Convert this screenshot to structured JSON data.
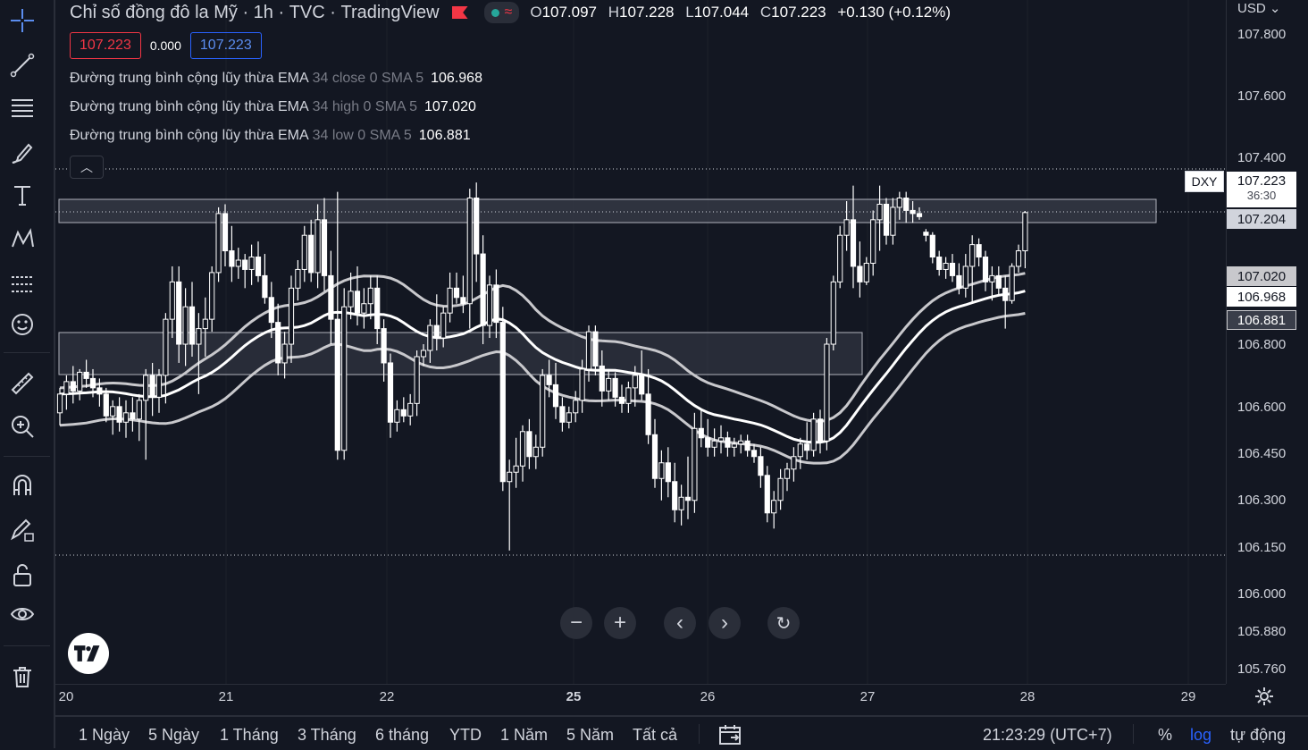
{
  "header": {
    "symbol_name": "Chỉ số đồng đô la Mỹ",
    "interval": "1h",
    "exchange": "TVC",
    "source": "TradingView",
    "ohlc": [
      {
        "k": "O",
        "v": "107.097"
      },
      {
        "k": "H",
        "v": "107.228"
      },
      {
        "k": "L",
        "v": "107.044"
      },
      {
        "k": "C",
        "v": "107.223"
      }
    ],
    "change": "+0.130 (+0.12%)",
    "sell_price": "107.223",
    "spread": "0.000",
    "buy_price": "107.223"
  },
  "indicators": [
    {
      "name": "Đường trung bình cộng lũy thừa EMA",
      "params": "34 close 0 SMA 5",
      "value": "106.968"
    },
    {
      "name": "Đường trung bình cộng lũy thừa EMA",
      "params": "34 high 0 SMA 5",
      "value": "107.020"
    },
    {
      "name": "Đường trung bình cộng lũy thừa EMA",
      "params": "34 low 0 SMA 5",
      "value": "106.881"
    }
  ],
  "price_scale": {
    "currency": "USD",
    "ticks": [
      "107.800",
      "107.600",
      "107.400",
      "106.800",
      "106.600",
      "106.450",
      "106.300",
      "106.150",
      "106.000",
      "105.880",
      "105.760"
    ],
    "labels": [
      {
        "text": "107.204",
        "kind": "zone"
      },
      {
        "text": "107.020",
        "kind": "ema-high"
      },
      {
        "text": "106.968",
        "kind": "ema-close"
      },
      {
        "text": "106.881",
        "kind": "ema-low"
      }
    ],
    "last_price": "107.223",
    "countdown": "36:30",
    "symbol_tag": "DXY"
  },
  "time_axis": [
    "20",
    "21",
    "22",
    "25",
    "26",
    "27",
    "28",
    "29"
  ],
  "bottom_bar": {
    "ranges": [
      "1 Ngày",
      "5 Ngày",
      "1 Tháng",
      "3 Tháng",
      "6 tháng",
      "YTD",
      "1 Năm",
      "5 Năm",
      "Tất cả"
    ],
    "clock": "21:23:29 (UTC+7)",
    "percent": "%",
    "log": "log",
    "auto": "tự động"
  },
  "colors": {
    "background": "#131722",
    "candle": "#ffffff",
    "ema_close": "#ffffff",
    "ema_band": "#c8c8cc",
    "zone_fill": "#3a3e4a",
    "sell": "#f23645",
    "buy": "#2962ff",
    "log_active": "#2962ff"
  },
  "chart_data": {
    "type": "candlestick",
    "symbol": "DXY",
    "interval": "1h",
    "x_ticks": [
      "20",
      "21",
      "22",
      "25",
      "26",
      "27",
      "28",
      "29"
    ],
    "y_ticks": [
      107.8,
      107.6,
      107.4,
      106.8,
      106.6,
      106.45,
      106.3,
      106.15,
      106.0,
      105.88,
      105.76
    ],
    "last": {
      "open": 107.097,
      "high": 107.228,
      "low": 107.044,
      "close": 107.223
    },
    "candles": [
      [
        106.58,
        106.66,
        106.54,
        106.64
      ],
      [
        106.64,
        106.7,
        106.59,
        106.68
      ],
      [
        106.68,
        106.73,
        106.61,
        106.65
      ],
      [
        106.65,
        106.72,
        106.62,
        106.71
      ],
      [
        106.71,
        106.75,
        106.66,
        106.69
      ],
      [
        106.69,
        106.72,
        106.63,
        106.66
      ],
      [
        106.66,
        106.69,
        106.6,
        106.64
      ],
      [
        106.64,
        106.66,
        106.55,
        106.57
      ],
      [
        106.57,
        106.62,
        106.51,
        106.6
      ],
      [
        106.6,
        106.63,
        106.52,
        106.55
      ],
      [
        106.55,
        106.62,
        106.5,
        106.58
      ],
      [
        106.58,
        106.63,
        106.52,
        106.56
      ],
      [
        106.56,
        106.64,
        106.49,
        106.62
      ],
      [
        106.62,
        106.72,
        106.43,
        106.7
      ],
      [
        106.7,
        106.74,
        106.57,
        106.63
      ],
      [
        106.63,
        106.72,
        106.58,
        106.7
      ],
      [
        106.7,
        106.9,
        106.61,
        106.88
      ],
      [
        106.88,
        107.05,
        106.82,
        107.0
      ],
      [
        107.0,
        107.05,
        106.74,
        106.8
      ],
      [
        106.8,
        106.98,
        106.73,
        106.92
      ],
      [
        106.92,
        107.0,
        106.76,
        106.8
      ],
      [
        106.8,
        106.9,
        106.64,
        106.85
      ],
      [
        106.85,
        106.95,
        106.76,
        106.88
      ],
      [
        106.88,
        107.05,
        106.84,
        107.03
      ],
      [
        107.03,
        107.24,
        107.0,
        107.22
      ],
      [
        107.22,
        107.25,
        107.05,
        107.1
      ],
      [
        107.1,
        107.18,
        107.0,
        107.05
      ],
      [
        107.05,
        107.11,
        107.01,
        107.07
      ],
      [
        107.07,
        107.09,
        106.98,
        107.04
      ],
      [
        107.04,
        107.12,
        106.99,
        107.08
      ],
      [
        107.08,
        107.13,
        107.0,
        107.02
      ],
      [
        107.02,
        107.09,
        106.93,
        106.95
      ],
      [
        106.95,
        107.0,
        106.82,
        106.87
      ],
      [
        106.87,
        106.93,
        106.7,
        106.74
      ],
      [
        106.74,
        106.84,
        106.69,
        106.8
      ],
      [
        106.8,
        107.02,
        106.74,
        106.98
      ],
      [
        106.98,
        107.07,
        106.94,
        107.04
      ],
      [
        107.04,
        107.18,
        107.0,
        107.15
      ],
      [
        107.15,
        107.2,
        107.0,
        107.03
      ],
      [
        107.03,
        107.25,
        106.98,
        107.2
      ],
      [
        107.2,
        107.27,
        106.97,
        107.02
      ],
      [
        107.02,
        107.1,
        106.8,
        106.88
      ],
      [
        106.88,
        107.29,
        106.43,
        106.46
      ],
      [
        106.46,
        106.98,
        106.43,
        106.92
      ],
      [
        106.92,
        107.03,
        106.88,
        106.97
      ],
      [
        106.97,
        107.05,
        106.86,
        106.9
      ],
      [
        106.9,
        106.98,
        106.85,
        106.93
      ],
      [
        106.93,
        107.02,
        106.88,
        106.98
      ],
      [
        106.98,
        107.02,
        106.8,
        106.85
      ],
      [
        106.85,
        106.88,
        106.68,
        106.74
      ],
      [
        106.74,
        106.77,
        106.5,
        106.55
      ],
      [
        106.55,
        106.62,
        106.52,
        106.59
      ],
      [
        106.59,
        106.63,
        106.55,
        106.57
      ],
      [
        106.57,
        106.64,
        106.54,
        106.61
      ],
      [
        106.61,
        106.78,
        106.57,
        106.76
      ],
      [
        106.76,
        106.8,
        106.73,
        106.78
      ],
      [
        106.78,
        106.88,
        106.74,
        106.86
      ],
      [
        106.86,
        106.96,
        106.78,
        106.82
      ],
      [
        106.82,
        106.92,
        106.79,
        106.9
      ],
      [
        106.9,
        107.03,
        106.87,
        106.98
      ],
      [
        106.98,
        107.03,
        106.93,
        106.95
      ],
      [
        106.95,
        107.02,
        106.9,
        106.93
      ],
      [
        106.93,
        107.3,
        106.85,
        107.27
      ],
      [
        107.27,
        107.32,
        107.0,
        107.09
      ],
      [
        107.09,
        107.15,
        106.8,
        106.86
      ],
      [
        106.86,
        107.02,
        106.82,
        106.99
      ],
      [
        106.99,
        107.04,
        106.82,
        106.87
      ],
      [
        106.87,
        106.92,
        106.33,
        106.36
      ],
      [
        106.36,
        106.43,
        106.14,
        106.39
      ],
      [
        106.39,
        106.5,
        106.34,
        106.41
      ],
      [
        106.41,
        106.54,
        106.36,
        106.52
      ],
      [
        106.52,
        106.56,
        106.4,
        106.44
      ],
      [
        106.44,
        106.51,
        106.4,
        106.47
      ],
      [
        106.47,
        106.72,
        106.44,
        106.7
      ],
      [
        106.7,
        106.75,
        106.63,
        106.67
      ],
      [
        106.67,
        106.74,
        106.56,
        106.6
      ],
      [
        106.6,
        106.63,
        106.52,
        106.55
      ],
      [
        106.55,
        106.6,
        106.53,
        106.58
      ],
      [
        106.58,
        106.65,
        106.55,
        106.62
      ],
      [
        106.62,
        106.75,
        106.58,
        106.72
      ],
      [
        106.72,
        106.86,
        106.68,
        106.84
      ],
      [
        106.84,
        106.86,
        106.7,
        106.73
      ],
      [
        106.73,
        106.78,
        106.6,
        106.65
      ],
      [
        106.65,
        106.72,
        106.62,
        106.69
      ],
      [
        106.69,
        106.71,
        106.6,
        106.63
      ],
      [
        106.63,
        106.67,
        106.58,
        106.61
      ],
      [
        106.61,
        106.68,
        106.58,
        106.66
      ],
      [
        106.66,
        106.73,
        106.6,
        106.7
      ],
      [
        106.7,
        106.78,
        106.62,
        106.64
      ],
      [
        106.64,
        106.72,
        106.48,
        106.51
      ],
      [
        106.51,
        106.56,
        106.34,
        106.37
      ],
      [
        106.37,
        106.46,
        106.3,
        106.42
      ],
      [
        106.42,
        106.47,
        106.31,
        106.36
      ],
      [
        106.36,
        106.42,
        106.23,
        106.27
      ],
      [
        106.27,
        106.35,
        106.22,
        106.31
      ],
      [
        106.31,
        106.44,
        106.24,
        106.3
      ],
      [
        106.3,
        106.58,
        106.26,
        106.53
      ],
      [
        106.53,
        106.59,
        106.47,
        106.5
      ],
      [
        106.5,
        106.56,
        106.44,
        106.47
      ],
      [
        106.47,
        106.53,
        106.44,
        106.49
      ],
      [
        106.49,
        106.54,
        106.45,
        106.5
      ],
      [
        106.5,
        106.52,
        106.44,
        106.47
      ],
      [
        106.47,
        106.5,
        106.44,
        106.48
      ],
      [
        106.48,
        106.51,
        106.45,
        106.49
      ],
      [
        106.49,
        106.51,
        106.44,
        106.46
      ],
      [
        106.46,
        106.48,
        106.42,
        106.44
      ],
      [
        106.44,
        106.47,
        106.34,
        106.38
      ],
      [
        106.38,
        106.41,
        106.23,
        106.26
      ],
      [
        106.26,
        106.33,
        106.21,
        106.3
      ],
      [
        106.3,
        106.4,
        106.27,
        106.37
      ],
      [
        106.37,
        106.42,
        106.33,
        106.4
      ],
      [
        106.4,
        106.47,
        106.36,
        106.44
      ],
      [
        106.44,
        106.5,
        106.4,
        106.48
      ],
      [
        106.48,
        106.55,
        106.43,
        106.46
      ],
      [
        106.46,
        106.58,
        106.44,
        106.56
      ],
      [
        106.56,
        106.59,
        106.45,
        106.49
      ],
      [
        106.49,
        106.82,
        106.46,
        106.8
      ],
      [
        106.8,
        107.02,
        106.78,
        107.0
      ],
      [
        107.0,
        107.18,
        106.98,
        107.15
      ],
      [
        107.15,
        107.26,
        107.1,
        107.2
      ],
      [
        107.2,
        107.31,
        106.98,
        107.05
      ],
      [
        107.05,
        107.13,
        106.95,
        107.0
      ],
      [
        107.0,
        107.08,
        106.99,
        107.06
      ],
      [
        107.06,
        107.23,
        107.02,
        107.2
      ],
      [
        107.2,
        107.31,
        107.1,
        107.25
      ],
      [
        107.25,
        107.27,
        107.12,
        107.15
      ],
      [
        107.15,
        107.27,
        107.12,
        107.24
      ],
      [
        107.24,
        107.29,
        107.2,
        107.27
      ],
      [
        107.27,
        107.29,
        107.19,
        107.23
      ],
      [
        107.23,
        107.26,
        107.19,
        107.22
      ],
      [
        107.22,
        107.24,
        107.2,
        107.21
      ],
      [
        107.16,
        107.17,
        107.13,
        107.15
      ],
      [
        107.15,
        107.16,
        107.06,
        107.08
      ],
      [
        107.08,
        107.1,
        107.02,
        107.04
      ],
      [
        107.04,
        107.08,
        107.01,
        107.06
      ],
      [
        107.06,
        107.09,
        107.0,
        107.02
      ],
      [
        107.02,
        107.06,
        106.96,
        106.98
      ],
      [
        106.98,
        107.09,
        106.95,
        107.05
      ],
      [
        107.05,
        107.15,
        106.93,
        107.12
      ],
      [
        107.12,
        107.14,
        107.05,
        107.08
      ],
      [
        107.08,
        107.1,
        106.97,
        107.0
      ],
      [
        107.0,
        107.05,
        106.94,
        107.02
      ],
      [
        107.02,
        107.05,
        106.96,
        106.98
      ],
      [
        106.98,
        107.02,
        106.85,
        106.94
      ],
      [
        106.94,
        107.06,
        106.93,
        107.05
      ],
      [
        107.05,
        107.12,
        107.03,
        107.1
      ],
      [
        107.1,
        107.228,
        107.044,
        107.223
      ]
    ]
  }
}
